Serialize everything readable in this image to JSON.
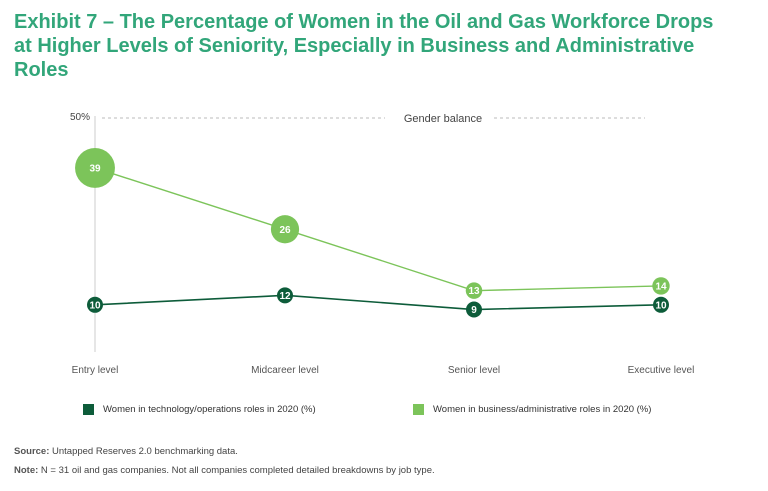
{
  "title_lines": [
    "Exhibit 7 – The Percentage of Women in the Oil and Gas Workforce Drops",
    "at Higher Levels of Seniority, Especially in Business and Administrative",
    "Roles"
  ],
  "chart_data": {
    "type": "line",
    "categories": [
      "Entry level",
      "Midcareer level",
      "Senior level",
      "Executive level"
    ],
    "series": [
      {
        "name": "Women in technology/operations roles in 2020 (%)",
        "values": [
          10,
          12,
          9,
          10
        ],
        "color": "#0d5c3a"
      },
      {
        "name": "Women in business/administrative roles in 2020 (%)",
        "values": [
          39,
          26,
          13,
          14
        ],
        "color": "#7cc45a"
      }
    ],
    "ylim": [
      0,
      50
    ],
    "y_tick_label": "50%",
    "reference_line": {
      "value": 50,
      "label": "Gender balance"
    },
    "xlabel": "",
    "ylabel": "",
    "legend_position": "bottom"
  },
  "notes": {
    "source_label": "Source:",
    "source_text": "Untapped Reserves 2.0 benchmarking data.",
    "note_label": "Note:",
    "note_text": "N = 31 oil and gas companies. Not all companies completed detailed breakdowns by job type."
  }
}
